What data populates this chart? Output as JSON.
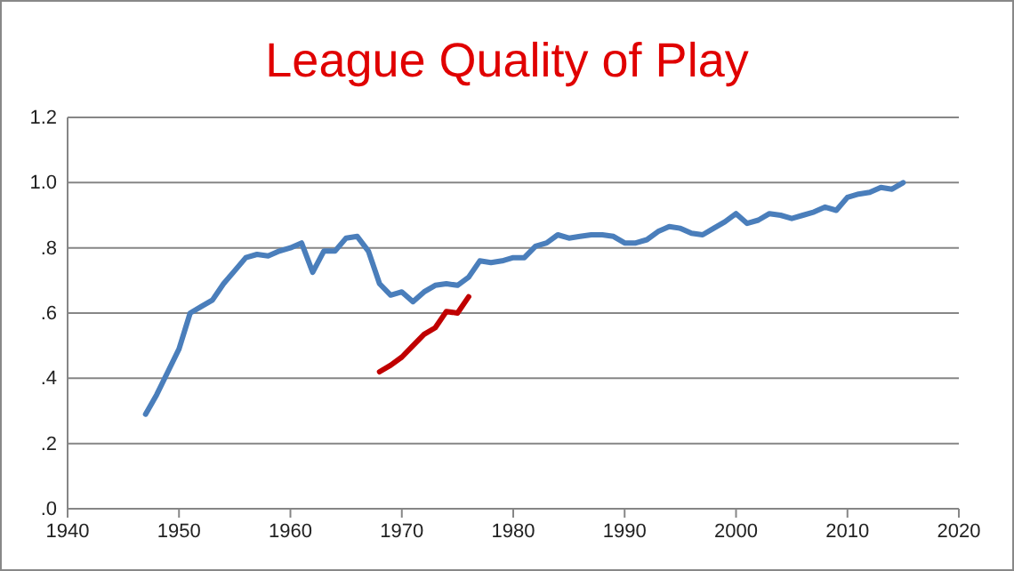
{
  "chart_data": {
    "type": "line",
    "title": "League Quality of Play",
    "xlim": [
      1940,
      2020
    ],
    "xticks": [
      1940,
      1950,
      1960,
      1970,
      1980,
      1990,
      2000,
      2010,
      2020
    ],
    "ylim": [
      0,
      1.2
    ],
    "yticks": [
      {
        "value": 0,
        "label": ".0"
      },
      {
        "value": 0.2,
        "label": ".2"
      },
      {
        "value": 0.4,
        "label": ".4"
      },
      {
        "value": 0.6,
        "label": ".6"
      },
      {
        "value": 0.8,
        "label": ".8"
      },
      {
        "value": 1,
        "label": "1.0"
      },
      {
        "value": 1.2,
        "label": "1.2"
      }
    ],
    "grid": "y",
    "marker": "none",
    "line_style": "solid",
    "series": [
      {
        "color": "#4a7ebb",
        "x": [
          1947,
          1948,
          1949,
          1950,
          1951,
          1952,
          1953,
          1954,
          1955,
          1956,
          1957,
          1958,
          1959,
          1960,
          1961,
          1962,
          1963,
          1964,
          1965,
          1966,
          1967,
          1968,
          1969,
          1970,
          1971,
          1972,
          1973,
          1974,
          1975,
          1976,
          1977,
          1978,
          1979,
          1980,
          1981,
          1982,
          1983,
          1984,
          1985,
          1986,
          1987,
          1988,
          1989,
          1990,
          1991,
          1992,
          1993,
          1994,
          1995,
          1996,
          1997,
          1998,
          1999,
          2000,
          2001,
          2002,
          2003,
          2004,
          2005,
          2006,
          2007,
          2008,
          2009,
          2010,
          2011,
          2012,
          2013,
          2014,
          2015
        ],
        "values": [
          0.29,
          0.35,
          0.42,
          0.49,
          0.6,
          0.62,
          0.64,
          0.69,
          0.73,
          0.77,
          0.78,
          0.775,
          0.79,
          0.8,
          0.815,
          0.725,
          0.79,
          0.79,
          0.83,
          0.835,
          0.79,
          0.69,
          0.655,
          0.665,
          0.635,
          0.665,
          0.685,
          0.69,
          0.685,
          0.71,
          0.76,
          0.755,
          0.76,
          0.77,
          0.77,
          0.805,
          0.815,
          0.84,
          0.83,
          0.835,
          0.84,
          0.84,
          0.835,
          0.815,
          0.815,
          0.825,
          0.85,
          0.865,
          0.86,
          0.845,
          0.84,
          0.86,
          0.88,
          0.905,
          0.875,
          0.885,
          0.905,
          0.9,
          0.89,
          0.9,
          0.91,
          0.925,
          0.915,
          0.955,
          0.965,
          0.97,
          0.985,
          0.98,
          1.0
        ]
      },
      {
        "color": "#c00000",
        "x": [
          1968,
          1969,
          1970,
          1971,
          1972,
          1973,
          1974,
          1975,
          1976
        ],
        "values": [
          0.42,
          0.44,
          0.465,
          0.5,
          0.535,
          0.555,
          0.605,
          0.6,
          0.65
        ]
      }
    ]
  }
}
